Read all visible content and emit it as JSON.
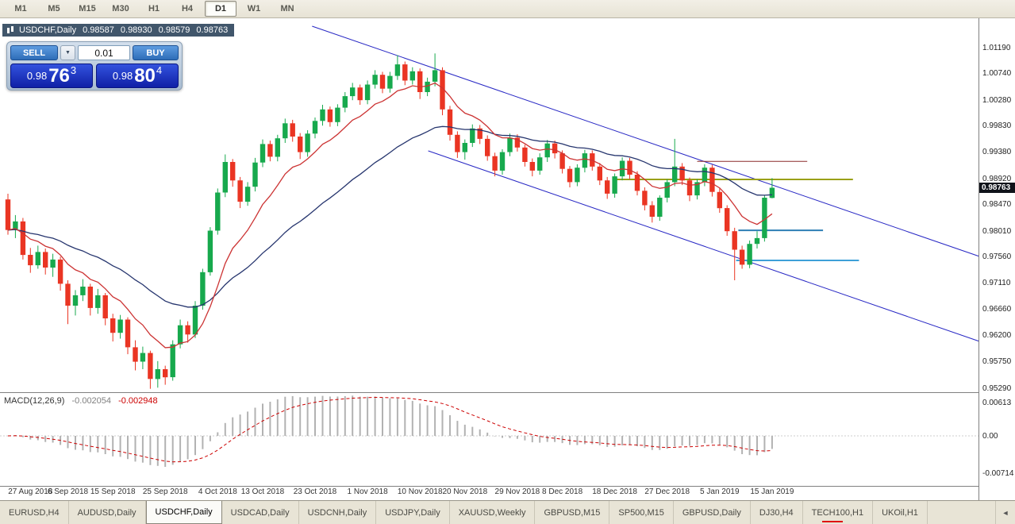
{
  "toolbar": {
    "timeframes": [
      {
        "label": "M1"
      },
      {
        "label": "M5"
      },
      {
        "label": "M15"
      },
      {
        "label": "M30"
      },
      {
        "label": "H1"
      },
      {
        "label": "H4"
      },
      {
        "label": "D1"
      },
      {
        "label": "W1"
      },
      {
        "label": "MN"
      }
    ],
    "active": "D1"
  },
  "chart_header": {
    "symbol_label": "USDCHF,Daily",
    "open": "0.98587",
    "high": "0.98930",
    "low": "0.98579",
    "close": "0.98763"
  },
  "trade_panel": {
    "sell_label": "SELL",
    "buy_label": "BUY",
    "lot_size": "0.01",
    "bid_prefix": "0.98",
    "bid_main": "76",
    "bid_sup": "3",
    "ask_prefix": "0.98",
    "ask_main": "80",
    "ask_sup": "4"
  },
  "icons": {
    "dropdown_icon": "▼",
    "tab_scroll_left_icon": "◄"
  },
  "price_axis": {
    "ticks": [
      "1.01190",
      "1.00740",
      "1.00280",
      "0.99830",
      "0.99380",
      "0.98920",
      "0.98470",
      "0.98010",
      "0.97560",
      "0.97110",
      "0.96660",
      "0.96200",
      "0.95750",
      "0.95290"
    ],
    "current_price": "0.98763",
    "current_price_value": 0.98763
  },
  "indicator": {
    "name": "MACD(12,26,9)",
    "macd_value": "-0.002054",
    "signal_value": "-0.002948",
    "axis_ticks": [
      "0.00613",
      "0.00",
      "-0.00714"
    ],
    "axis_tick_values": [
      0.00613,
      0.0,
      -0.00714
    ]
  },
  "date_axis": {
    "labels": [
      {
        "label": "27 Aug 2018",
        "index": 3
      },
      {
        "label": "6 Sep 2018",
        "index": 8
      },
      {
        "label": "15 Sep 2018",
        "index": 14
      },
      {
        "label": "25 Sep 2018",
        "index": 21
      },
      {
        "label": "4 Oct 2018",
        "index": 28
      },
      {
        "label": "13 Oct 2018",
        "index": 34
      },
      {
        "label": "23 Oct 2018",
        "index": 41
      },
      {
        "label": "1 Nov 2018",
        "index": 48
      },
      {
        "label": "10 Nov 2018",
        "index": 55
      },
      {
        "label": "20 Nov 2018",
        "index": 61
      },
      {
        "label": "29 Nov 2018",
        "index": 68
      },
      {
        "label": "8 Dec 2018",
        "index": 74
      },
      {
        "label": "18 Dec 2018",
        "index": 81
      },
      {
        "label": "27 Dec 2018",
        "index": 88
      },
      {
        "label": "5 Jan 2019",
        "index": 95
      },
      {
        "label": "15 Jan 2019",
        "index": 102
      }
    ]
  },
  "tabs": {
    "items": [
      {
        "label": "EURUSD,H4"
      },
      {
        "label": "AUDUSD,Daily"
      },
      {
        "label": "USDCHF,Daily"
      },
      {
        "label": "USDCAD,Daily"
      },
      {
        "label": "USDCNH,Daily"
      },
      {
        "label": "USDJPY,Daily"
      },
      {
        "label": "XAUUSD,Weekly"
      },
      {
        "label": "GBPUSD,M15"
      },
      {
        "label": "SP500,M15"
      },
      {
        "label": "GBPUSD,Daily"
      },
      {
        "label": "DJ30,H4"
      },
      {
        "label": "TECH100,H1"
      },
      {
        "label": "UKOil,H1"
      }
    ],
    "active_index": 2
  },
  "chart_data": {
    "type": "candlestick",
    "symbol": "USDCHF",
    "timeframe": "Daily",
    "price_range": [
      0.952212,
      1.016851
    ],
    "colors": {
      "bull": "#17a94d",
      "bear": "#ea3523",
      "ma_fast": "#cc3333",
      "ma_slow": "#26356e",
      "trendline": "#2727c4",
      "macd_histogram": "#b2b2b2",
      "macd_signal": "#cc0000"
    },
    "candles": [
      [
        0.9856,
        0.9866,
        0.9795,
        0.9803
      ],
      [
        0.9803,
        0.9829,
        0.9789,
        0.9818
      ],
      [
        0.9818,
        0.9824,
        0.9752,
        0.976
      ],
      [
        0.976,
        0.9772,
        0.9729,
        0.9742
      ],
      [
        0.9742,
        0.9776,
        0.9736,
        0.9765
      ],
      [
        0.9765,
        0.9771,
        0.9726,
        0.9738
      ],
      [
        0.9738,
        0.9762,
        0.9722,
        0.9752
      ],
      [
        0.9752,
        0.9757,
        0.9698,
        0.971
      ],
      [
        0.971,
        0.9716,
        0.964,
        0.9672
      ],
      [
        0.9672,
        0.9699,
        0.9655,
        0.969
      ],
      [
        0.969,
        0.9718,
        0.968,
        0.9705
      ],
      [
        0.9705,
        0.971,
        0.9655,
        0.9668
      ],
      [
        0.9668,
        0.9701,
        0.9658,
        0.969
      ],
      [
        0.969,
        0.9694,
        0.9638,
        0.965
      ],
      [
        0.965,
        0.9658,
        0.961,
        0.9625
      ],
      [
        0.9625,
        0.9656,
        0.9615,
        0.9648
      ],
      [
        0.9648,
        0.9652,
        0.9588,
        0.96
      ],
      [
        0.96,
        0.9612,
        0.956,
        0.9575
      ],
      [
        0.9575,
        0.9601,
        0.9562,
        0.959
      ],
      [
        0.959,
        0.9594,
        0.9528,
        0.9545
      ],
      [
        0.9545,
        0.9576,
        0.953,
        0.9562
      ],
      [
        0.9562,
        0.9568,
        0.9535,
        0.9548
      ],
      [
        0.9548,
        0.9612,
        0.9542,
        0.9605
      ],
      [
        0.9605,
        0.9648,
        0.9598,
        0.9638
      ],
      [
        0.9638,
        0.9645,
        0.9608,
        0.9622
      ],
      [
        0.9622,
        0.968,
        0.9616,
        0.9672
      ],
      [
        0.9672,
        0.9736,
        0.9665,
        0.973
      ],
      [
        0.973,
        0.9808,
        0.9724,
        0.9802
      ],
      [
        0.9802,
        0.9875,
        0.9795,
        0.9868
      ],
      [
        0.9868,
        0.9934,
        0.986,
        0.9921
      ],
      [
        0.9921,
        0.9926,
        0.9878,
        0.9889
      ],
      [
        0.9889,
        0.9895,
        0.9841,
        0.9852
      ],
      [
        0.9852,
        0.9886,
        0.9845,
        0.9878
      ],
      [
        0.9878,
        0.9928,
        0.987,
        0.992
      ],
      [
        0.992,
        0.996,
        0.9912,
        0.9952
      ],
      [
        0.9952,
        0.9958,
        0.9922,
        0.993
      ],
      [
        0.993,
        0.9968,
        0.9922,
        0.9962
      ],
      [
        0.9962,
        0.9996,
        0.9954,
        0.9988
      ],
      [
        0.9988,
        0.9994,
        0.9956,
        0.9965
      ],
      [
        0.9965,
        0.9971,
        0.9926,
        0.9938
      ],
      [
        0.9938,
        0.9976,
        0.993,
        0.997
      ],
      [
        0.997,
        0.9998,
        0.9962,
        0.9992
      ],
      [
        0.9992,
        1.002,
        0.9984,
        1.0012
      ],
      [
        1.0012,
        1.0017,
        0.9982,
        0.999
      ],
      [
        0.999,
        1.0021,
        0.9983,
        1.0015
      ],
      [
        1.0015,
        1.0042,
        1.0007,
        1.0035
      ],
      [
        1.0035,
        1.0058,
        1.0028,
        1.005
      ],
      [
        1.005,
        1.0055,
        1.002,
        1.0028
      ],
      [
        1.0028,
        1.0062,
        1.0021,
        1.0055
      ],
      [
        1.0055,
        1.008,
        1.0048,
        1.0072
      ],
      [
        1.0072,
        1.0077,
        1.004,
        1.0048
      ],
      [
        1.0048,
        1.0077,
        1.0041,
        1.007
      ],
      [
        1.007,
        1.0106,
        1.0063,
        1.009
      ],
      [
        1.009,
        1.0095,
        1.0054,
        1.0062
      ],
      [
        1.0062,
        1.0085,
        1.0055,
        1.0078
      ],
      [
        1.0078,
        1.0083,
        1.003,
        1.0042
      ],
      [
        1.0042,
        1.0067,
        1.0035,
        1.006
      ],
      [
        1.006,
        1.0109,
        1.0052,
        1.008
      ],
      [
        1.008,
        1.0085,
        1.0002,
        1.0012
      ],
      [
        1.0012,
        1.0018,
        0.9958,
        0.9968
      ],
      [
        0.9968,
        0.9974,
        0.9928,
        0.9938
      ],
      [
        0.9938,
        0.996,
        0.9925,
        0.9954
      ],
      [
        0.9954,
        0.9986,
        0.9947,
        0.9979
      ],
      [
        0.9979,
        0.9985,
        0.9952,
        0.9961
      ],
      [
        0.9961,
        0.9967,
        0.9923,
        0.9931
      ],
      [
        0.9931,
        0.9937,
        0.9896,
        0.9906
      ],
      [
        0.9906,
        0.9943,
        0.9899,
        0.9938
      ],
      [
        0.9938,
        0.997,
        0.9931,
        0.9963
      ],
      [
        0.9963,
        0.9969,
        0.9939,
        0.9946
      ],
      [
        0.9946,
        0.9951,
        0.9913,
        0.9921
      ],
      [
        0.9921,
        0.9927,
        0.9896,
        0.9906
      ],
      [
        0.9906,
        0.9936,
        0.9899,
        0.9929
      ],
      [
        0.9929,
        0.9959,
        0.9921,
        0.9953
      ],
      [
        0.9953,
        0.9958,
        0.9927,
        0.9936
      ],
      [
        0.9936,
        0.9941,
        0.9901,
        0.9909
      ],
      [
        0.9909,
        0.9914,
        0.9877,
        0.9886
      ],
      [
        0.9886,
        0.9917,
        0.9879,
        0.9911
      ],
      [
        0.9911,
        0.9942,
        0.9903,
        0.9936
      ],
      [
        0.9936,
        0.9941,
        0.9906,
        0.9913
      ],
      [
        0.9913,
        0.9919,
        0.9881,
        0.9889
      ],
      [
        0.9889,
        0.9895,
        0.9857,
        0.9866
      ],
      [
        0.9866,
        0.9901,
        0.9859,
        0.9896
      ],
      [
        0.9896,
        0.9929,
        0.9889,
        0.9923
      ],
      [
        0.9923,
        0.9928,
        0.9891,
        0.9899
      ],
      [
        0.9899,
        0.9905,
        0.9863,
        0.9871
      ],
      [
        0.9871,
        0.9877,
        0.9837,
        0.9846
      ],
      [
        0.9846,
        0.9853,
        0.9816,
        0.9826
      ],
      [
        0.9826,
        0.9863,
        0.9819,
        0.9859
      ],
      [
        0.9859,
        0.9891,
        0.9851,
        0.9886
      ],
      [
        0.9886,
        0.9961,
        0.9879,
        0.9913
      ],
      [
        0.9913,
        0.9919,
        0.9881,
        0.9889
      ],
      [
        0.9889,
        0.9894,
        0.9853,
        0.9863
      ],
      [
        0.9863,
        0.9891,
        0.9856,
        0.9886
      ],
      [
        0.9886,
        0.9917,
        0.9879,
        0.9911
      ],
      [
        0.9911,
        0.9916,
        0.9861,
        0.9869
      ],
      [
        0.9869,
        0.9875,
        0.9833,
        0.9841
      ],
      [
        0.9841,
        0.9846,
        0.9793,
        0.9801
      ],
      [
        0.9801,
        0.9807,
        0.9716,
        0.9769
      ],
      [
        0.9769,
        0.9776,
        0.9736,
        0.9743
      ],
      [
        0.9743,
        0.9785,
        0.9737,
        0.9779
      ],
      [
        0.9779,
        0.9801,
        0.9771,
        0.9789
      ],
      [
        0.9789,
        0.9863,
        0.9783,
        0.9859
      ],
      [
        0.98587,
        0.9893,
        0.98579,
        0.98763
      ]
    ],
    "overlays": {
      "ma_fast": {
        "type": "ema",
        "period": 10
      },
      "ma_slow": {
        "type": "ema",
        "period": 30
      },
      "trendlines": [
        {
          "x1_index": 40.6,
          "price1": 1.01561,
          "x2_index": 130.3,
          "price2": 0.97545,
          "width": 1
        },
        {
          "x1_index": 56.1,
          "price1": 0.99402,
          "x2_index": 130.3,
          "price2": 0.96074,
          "width": 1
        }
      ],
      "hlines": [
        {
          "price": 0.9922,
          "from_index": 92,
          "to_index": 106.7,
          "color": "#8b2a2a",
          "width": 1
        },
        {
          "price": 0.98907,
          "from_index": 81,
          "to_index": 112.8,
          "color": "#9aa018",
          "width": 2
        },
        {
          "price": 0.98026,
          "from_index": 97.5,
          "to_index": 108.8,
          "color": "#2e7fb5",
          "width": 2
        },
        {
          "price": 0.97504,
          "from_index": 97.2,
          "to_index": 113.6,
          "color": "#3da0d8",
          "width": 2
        }
      ]
    },
    "macd": {
      "fast": 12,
      "slow": 26,
      "signal_period": 9
    }
  }
}
